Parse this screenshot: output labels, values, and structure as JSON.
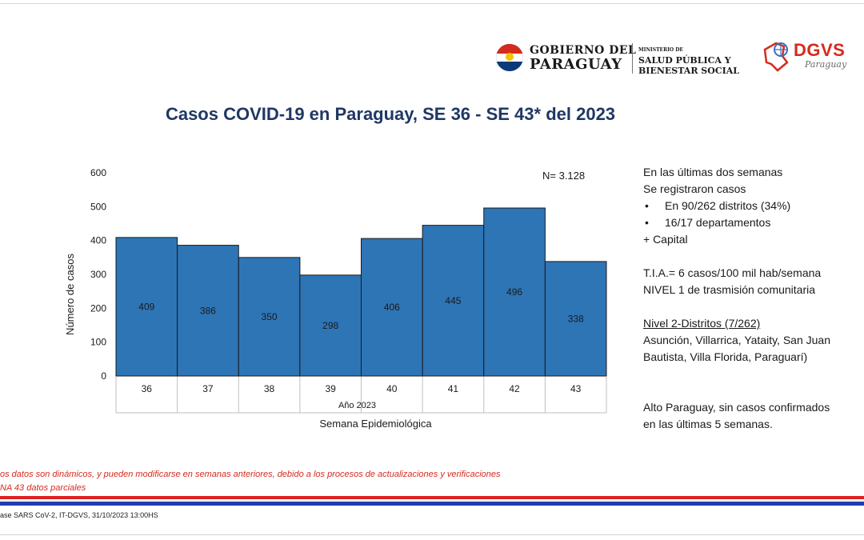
{
  "header": {
    "gov_line1": "GOBIERNO DEL",
    "gov_line2": "PARAGUAY",
    "ministry_line0": "MINISTERIO DE",
    "ministry_line1": "SALUD PÚBLICA Y",
    "ministry_line2": "BIENESTAR SOCIAL",
    "dgvs_name": "DGVS",
    "dgvs_sub": "Paraguay"
  },
  "title": "Casos COVID-19 en Paraguay, SE 36 - SE 43* del  2023",
  "chart_data": {
    "type": "bar",
    "categories": [
      "36",
      "37",
      "38",
      "39",
      "40",
      "41",
      "42",
      "43"
    ],
    "values": [
      409,
      386,
      350,
      298,
      406,
      445,
      496,
      338
    ],
    "ylabel": "Número de casos",
    "xlabel_group": "Año 2023",
    "xlabel": "Semana Epidemiológica",
    "annotation": "N= 3.128",
    "ylim": [
      0,
      600
    ],
    "yticks": [
      0,
      100,
      200,
      300,
      400,
      500,
      600
    ],
    "bar_color": "#2e75b6",
    "grid": false
  },
  "sidebar": {
    "line1": "En las últimas dos semanas",
    "line2": "Se registraron casos",
    "bullets": [
      "En 90/262 distritos (34%)",
      "16/17 departamentos"
    ],
    "line3": "+ Capital",
    "tia": "T.I.A.= 6 casos/100 mil hab/semana",
    "nivel": "NIVEL 1 de trasmisión comunitaria",
    "nivel2_title": "Nivel 2-Distritos (7/262)",
    "nivel2_line1": "Asunción, Villarrica, Yataity, San Juan",
    "nivel2_line2": "Bautista, Villa Florida, Paraguarí)",
    "alto_line1": "Alto Paraguay, sin casos confirmados",
    "alto_line2": "en las últimas 5 semanas."
  },
  "footnotes": {
    "note1": "os datos son dinámicos, y pueden modificarse en semanas anteriores, debido a los procesos de actualizaciones y verificaciones",
    "note2": "NA 43 datos parciales",
    "source": "ase SARS CoV-2, IT-DGVS, 31/10/2023 13:00HS"
  },
  "colors": {
    "title": "#1f3864",
    "note": "#d52b1e",
    "band_red": "#e02020",
    "band_blue": "#1f3fae"
  }
}
